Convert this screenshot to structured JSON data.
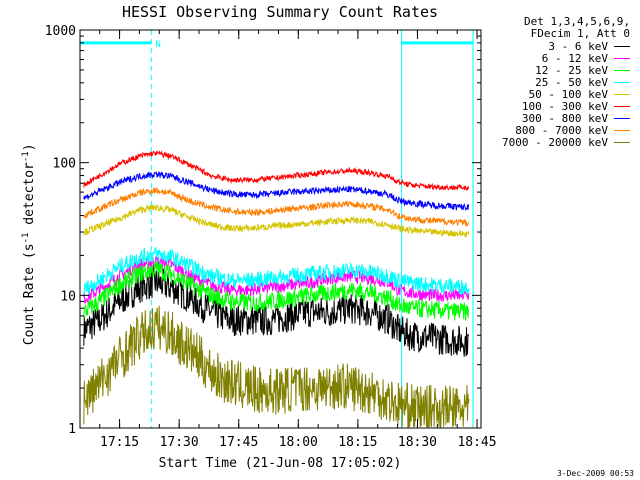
{
  "chart_data": {
    "type": "line",
    "title": "HESSI Observing Summary Count Rates",
    "xlabel": "Start Time (21-Jun-08 17:05:02)",
    "ylabel_pre": "Count Rate (s",
    "ylabel_sup1": "-1",
    "ylabel_mid": " detector",
    "ylabel_sup2": "-1",
    "ylabel_post": ")",
    "yscale": "log",
    "ylim": [
      1,
      1000
    ],
    "xlim": [
      "17:05:02",
      "18:46:00"
    ],
    "y_ticks": [
      {
        "value": 1,
        "label": "1"
      },
      {
        "value": 10,
        "label": "10"
      },
      {
        "value": 100,
        "label": "100"
      },
      {
        "value": 1000,
        "label": "1000"
      }
    ],
    "x_ticks": [
      "17:15",
      "17:30",
      "17:45",
      "18:00",
      "18:15",
      "18:30",
      "18:45"
    ],
    "legend_header": [
      "Det 1,3,4,5,6,9,",
      "FDecim 1, Att 0"
    ],
    "series": [
      {
        "name": "3 - 6 keV",
        "color": "#000000",
        "x": [
          "17:06",
          "17:10",
          "17:15",
          "17:20",
          "17:24",
          "17:28",
          "17:33",
          "17:38",
          "17:43",
          "17:48",
          "17:53",
          "17:58",
          "18:03",
          "18:08",
          "18:13",
          "18:18",
          "18:23",
          "18:25",
          "18:28",
          "18:33",
          "18:38",
          "18:43"
        ],
        "y": [
          5.5,
          6.5,
          9,
          11.5,
          12.5,
          11.5,
          9.5,
          7.5,
          6.5,
          6.5,
          6.5,
          7,
          7.5,
          7.5,
          8,
          7.5,
          6.5,
          5.5,
          5,
          4.8,
          4.6,
          4.5
        ]
      },
      {
        "name": "6 - 12 keV",
        "color": "#ff00ff",
        "x": [
          "17:06",
          "17:10",
          "17:15",
          "17:20",
          "17:24",
          "17:28",
          "17:33",
          "17:38",
          "17:43",
          "17:48",
          "17:53",
          "17:58",
          "18:03",
          "18:08",
          "18:13",
          "18:18",
          "18:23",
          "18:25",
          "18:28",
          "18:33",
          "18:38",
          "18:43"
        ],
        "y": [
          9.5,
          11,
          14,
          17,
          18,
          17,
          14,
          12,
          11,
          11,
          11.5,
          12,
          12.5,
          13.5,
          14,
          13.5,
          12.5,
          11,
          10.5,
          10,
          10,
          10
        ]
      },
      {
        "name": "12 - 25 keV",
        "color": "#00ff00",
        "x": [
          "17:06",
          "17:10",
          "17:15",
          "17:20",
          "17:24",
          "17:28",
          "17:33",
          "17:38",
          "17:43",
          "17:48",
          "17:53",
          "17:58",
          "18:03",
          "18:08",
          "18:13",
          "18:18",
          "18:23",
          "18:25",
          "18:28",
          "18:33",
          "18:38",
          "18:43"
        ],
        "y": [
          7.5,
          9,
          12,
          14.5,
          16,
          14.5,
          12,
          10,
          9,
          8.8,
          9,
          9.5,
          10,
          10.5,
          11,
          10.5,
          9.5,
          8.5,
          8,
          7.8,
          7.6,
          7.5
        ]
      },
      {
        "name": "25 - 50 keV",
        "color": "#00ffff",
        "x": [
          "17:06",
          "17:10",
          "17:15",
          "17:20",
          "17:24",
          "17:28",
          "17:33",
          "17:38",
          "17:43",
          "17:48",
          "17:53",
          "17:58",
          "18:03",
          "18:08",
          "18:13",
          "18:18",
          "18:23",
          "18:25",
          "18:28",
          "18:33",
          "18:38",
          "18:43"
        ],
        "y": [
          11,
          13,
          16.5,
          19.5,
          20.5,
          19.5,
          16.5,
          14,
          13,
          13,
          13.5,
          14,
          14.5,
          15,
          15.5,
          15,
          14,
          13,
          12.5,
          12,
          11.8,
          11.5
        ]
      },
      {
        "name": "50 - 100 keV",
        "color": "#d4c400",
        "x": [
          "17:06",
          "17:10",
          "17:15",
          "17:20",
          "17:24",
          "17:28",
          "17:33",
          "17:38",
          "17:43",
          "17:48",
          "17:53",
          "17:58",
          "18:03",
          "18:08",
          "18:13",
          "18:18",
          "18:23",
          "18:25",
          "18:28",
          "18:33",
          "18:38",
          "18:43"
        ],
        "y": [
          30,
          33,
          38,
          44,
          46,
          44,
          38,
          34,
          32,
          32,
          33,
          34,
          35,
          36,
          37,
          36,
          34,
          32,
          31,
          30,
          29.5,
          29
        ]
      },
      {
        "name": "100 - 300 keV",
        "color": "#ff0000",
        "x": [
          "17:06",
          "17:10",
          "17:15",
          "17:20",
          "17:24",
          "17:28",
          "17:33",
          "17:38",
          "17:43",
          "17:48",
          "17:53",
          "17:58",
          "18:03",
          "18:08",
          "18:13",
          "18:18",
          "18:23",
          "18:25",
          "18:28",
          "18:33",
          "18:38",
          "18:43"
        ],
        "y": [
          68,
          80,
          98,
          112,
          118,
          112,
          95,
          80,
          74,
          74,
          76,
          79,
          82,
          85,
          87,
          84,
          78,
          72,
          68,
          66,
          65,
          65
        ]
      },
      {
        "name": "300 - 800 keV",
        "color": "#0000ff",
        "x": [
          "17:06",
          "17:10",
          "17:15",
          "17:20",
          "17:24",
          "17:28",
          "17:33",
          "17:38",
          "17:43",
          "17:48",
          "17:53",
          "17:58",
          "18:03",
          "18:08",
          "18:13",
          "18:18",
          "18:23",
          "18:25",
          "18:28",
          "18:33",
          "18:38",
          "18:43"
        ],
        "y": [
          54,
          61,
          71,
          79,
          82,
          79,
          70,
          62,
          58,
          57,
          58,
          60,
          61,
          62,
          63,
          61,
          57,
          52,
          50,
          48,
          47,
          46
        ]
      },
      {
        "name": "800 - 7000 keV",
        "color": "#ff7f00",
        "x": [
          "17:06",
          "17:10",
          "17:15",
          "17:20",
          "17:24",
          "17:28",
          "17:33",
          "17:38",
          "17:43",
          "17:48",
          "17:53",
          "17:58",
          "18:03",
          "18:08",
          "18:13",
          "18:18",
          "18:23",
          "18:25",
          "18:28",
          "18:33",
          "18:38",
          "18:43"
        ],
        "y": [
          40,
          45,
          52,
          59,
          62,
          59,
          51,
          46,
          43,
          42,
          43,
          45,
          46,
          48,
          49,
          47,
          44,
          40,
          38,
          36.5,
          36,
          35
        ]
      },
      {
        "name": "7000 - 20000 keV",
        "color": "#808000",
        "x": [
          "17:06",
          "17:10",
          "17:14",
          "17:18",
          "17:21",
          "17:24",
          "17:27",
          "17:30",
          "17:34",
          "17:37",
          "17:40",
          "17:45",
          "17:50",
          "17:55",
          "18:00",
          "18:05",
          "18:10",
          "18:15",
          "18:20",
          "18:25",
          "18:30",
          "18:35",
          "18:40",
          "18:43"
        ],
        "y": [
          1.6,
          2.2,
          3.1,
          4.2,
          5.1,
          5.8,
          5.4,
          4.5,
          3.6,
          2.9,
          2.4,
          2.1,
          1.9,
          1.9,
          2,
          2,
          2.1,
          2,
          1.8,
          1.5,
          1.4,
          1.4,
          1.4,
          1.4
        ]
      }
    ],
    "annotations": {
      "vertical_lines": [
        "17:05:02",
        "18:26:00",
        "18:44:00"
      ],
      "dashed_lines": [
        "17:23:00",
        "18:44:00"
      ],
      "flag_bars": [
        {
          "x_start": "17:05:02",
          "x_end": "17:23:00",
          "value": 800
        },
        {
          "x_start": "18:26:00",
          "x_end": "18:44:00",
          "value": 800
        }
      ],
      "flag_label": {
        "text": "N",
        "x": "17:23:00"
      }
    }
  },
  "footer": {
    "date": "3-Dec-2009 00:53"
  }
}
